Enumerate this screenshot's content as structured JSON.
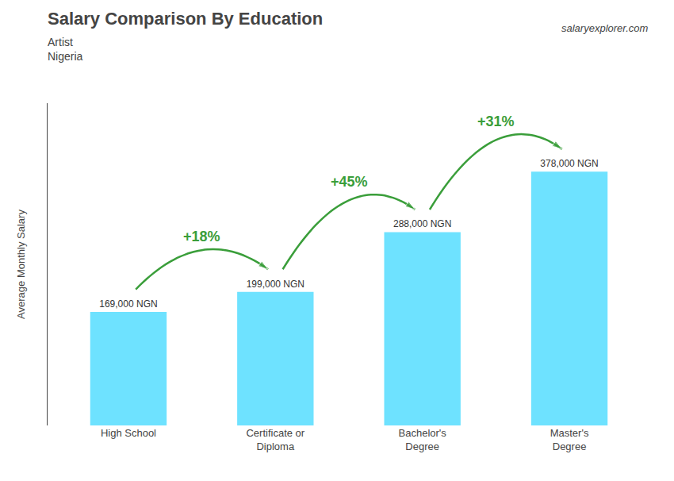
{
  "chart_data": {
    "type": "bar",
    "title": "Salary Comparison By Education",
    "subtitle": [
      "Artist",
      "Nigeria"
    ],
    "ylabel": "Average Monthly Salary",
    "categories": [
      "High School",
      "Certificate or\nDiploma",
      "Bachelor's\nDegree",
      "Master's\nDegree"
    ],
    "values": [
      169000,
      199000,
      288000,
      378000
    ],
    "value_labels": [
      "169,000 NGN",
      "199,000 NGN",
      "288,000 NGN",
      "378,000 NGN"
    ],
    "data_labels": true,
    "color": "#55ddff",
    "ylim": [
      0,
      480000
    ],
    "grid": false,
    "tick_labels": "x",
    "annotations": [
      {
        "text": "+18%",
        "from": "High School",
        "to": "Certificate or\nDiploma"
      },
      {
        "text": "+45%",
        "from": "Certificate or\nDiploma",
        "to": "Bachelor's\nDegree"
      },
      {
        "text": "+31%",
        "from": "Bachelor's\nDegree",
        "to": "Master's\nDegree"
      },
      {
        "text": "salaryexplorer.com"
      }
    ]
  }
}
